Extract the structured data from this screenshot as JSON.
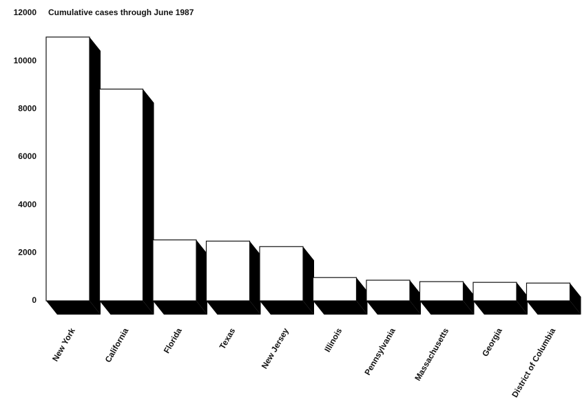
{
  "chart_data": {
    "type": "bar3d",
    "title": "Cumulative cases through June 1987",
    "categories": [
      "New York",
      "California",
      "Florida",
      "Texas",
      "New Jersey",
      "Illinois",
      "Pennsylvania",
      "Massachusetts",
      "Georgia",
      "District of Columbia"
    ],
    "values": [
      11000,
      8830,
      2540,
      2490,
      2260,
      970,
      860,
      800,
      770,
      740
    ],
    "color": "#ffffff",
    "shade": "#000000",
    "ylim": [
      0,
      12000
    ],
    "yticks": [
      0,
      2000,
      4000,
      6000,
      8000,
      10000,
      12000
    ],
    "grid": false
  }
}
